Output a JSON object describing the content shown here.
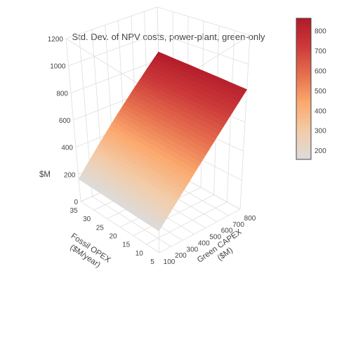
{
  "chart_data": {
    "type": "surface",
    "title": "Std. Dev. of NPV costs, power-plant, green-only",
    "x_axis": {
      "label_line1": "Green CAPEX",
      "label_line2": "($M)",
      "range": [
        100,
        800
      ],
      "ticks": [
        100,
        200,
        300,
        400,
        500,
        600,
        700,
        800
      ]
    },
    "y_axis": {
      "label_line1": "Fossil OPEX",
      "label_line2": "($M/year)",
      "range": [
        5,
        35
      ],
      "ticks": [
        35,
        30,
        25,
        20,
        15,
        10,
        5
      ]
    },
    "z_axis": {
      "label": "$M",
      "range": [
        0,
        1200
      ],
      "ticks": [
        0,
        200,
        400,
        600,
        800,
        1000,
        1200
      ]
    },
    "surface_corners": [
      {
        "green_capex": 100,
        "fossil_opex": 5,
        "std_dev": 165
      },
      {
        "green_capex": 100,
        "fossil_opex": 35,
        "std_dev": 165
      },
      {
        "green_capex": 800,
        "fossil_opex": 5,
        "std_dev": 825
      },
      {
        "green_capex": 800,
        "fossil_opex": 35,
        "std_dev": 860
      }
    ],
    "colorscale": {
      "min": 160,
      "max": 860,
      "ticks": [
        200,
        300,
        400,
        500,
        600,
        700,
        800
      ],
      "stops": [
        [
          0.0,
          "#dcdcdc"
        ],
        [
          0.2,
          "#f2cca9"
        ],
        [
          0.4,
          "#fba96e"
        ],
        [
          0.6,
          "#e66f4e"
        ],
        [
          0.8,
          "#cc3a3a"
        ],
        [
          1.0,
          "#b11a29"
        ]
      ]
    },
    "grid": true,
    "colorbar_placement": "right"
  }
}
